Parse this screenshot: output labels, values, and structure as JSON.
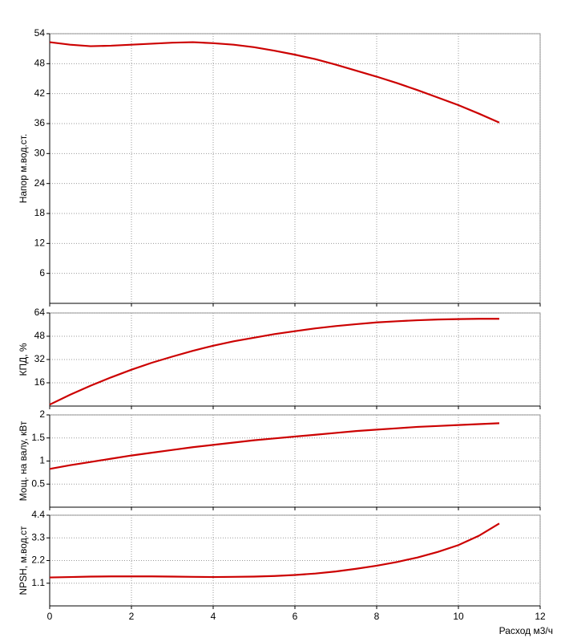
{
  "chart_data": [
    {
      "type": "line",
      "ylabel": "Напор м.вод.ст.",
      "grid": true,
      "xlim": [
        0,
        12
      ],
      "xticks": [
        0,
        2,
        4,
        6,
        8,
        10,
        12
      ],
      "ylim": [
        0,
        54
      ],
      "yticks": [
        6,
        12,
        18,
        24,
        30,
        36,
        42,
        48,
        54
      ],
      "x": [
        0,
        0.5,
        1,
        1.5,
        2,
        2.5,
        3,
        3.5,
        4,
        4.5,
        5,
        5.5,
        6,
        6.5,
        7,
        7.5,
        8,
        8.5,
        9,
        9.5,
        10,
        10.5,
        11
      ],
      "series": [
        {
          "color": "#cc0000",
          "values": [
            52.3,
            51.8,
            51.5,
            51.6,
            51.8,
            52.0,
            52.2,
            52.3,
            52.1,
            51.8,
            51.3,
            50.6,
            49.8,
            48.9,
            47.8,
            46.6,
            45.4,
            44.1,
            42.7,
            41.2,
            39.7,
            38.0,
            36.2
          ]
        }
      ]
    },
    {
      "type": "line",
      "ylabel": "КПД, %",
      "grid": true,
      "xlim": [
        0,
        12
      ],
      "xticks": [
        0,
        2,
        4,
        6,
        8,
        10,
        12
      ],
      "ylim": [
        0,
        64
      ],
      "yticks": [
        16,
        32,
        48,
        64
      ],
      "x": [
        0,
        0.5,
        1,
        1.5,
        2,
        2.5,
        3,
        3.5,
        4,
        4.5,
        5,
        5.5,
        6,
        6.5,
        7,
        7.5,
        8,
        8.5,
        9,
        9.5,
        10,
        10.5,
        11
      ],
      "series": [
        {
          "color": "#cc0000",
          "values": [
            1,
            7.8,
            14,
            19.7,
            25,
            29.8,
            34,
            38,
            41.5,
            44.5,
            47,
            49.5,
            51.5,
            53.4,
            55,
            56.3,
            57.5,
            58.3,
            59,
            59.5,
            59.8,
            60,
            60
          ]
        }
      ]
    },
    {
      "type": "line",
      "ylabel": "Мощ. на валу, кВт",
      "grid": true,
      "xlim": [
        0,
        12
      ],
      "xticks": [
        0,
        2,
        4,
        6,
        8,
        10,
        12
      ],
      "ylim": [
        0,
        2
      ],
      "yticks": [
        0.5,
        1,
        1.5,
        2
      ],
      "x": [
        0,
        0.5,
        1,
        1.5,
        2,
        2.5,
        3,
        3.5,
        4,
        4.5,
        5,
        5.5,
        6,
        6.5,
        7,
        7.5,
        8,
        8.5,
        9,
        9.5,
        10,
        10.5,
        11
      ],
      "series": [
        {
          "color": "#cc0000",
          "values": [
            0.83,
            0.91,
            0.98,
            1.05,
            1.12,
            1.18,
            1.24,
            1.3,
            1.35,
            1.4,
            1.45,
            1.49,
            1.53,
            1.57,
            1.61,
            1.65,
            1.68,
            1.71,
            1.74,
            1.76,
            1.78,
            1.8,
            1.82
          ]
        }
      ]
    },
    {
      "type": "line",
      "ylabel": "NPSH, м.вод.ст",
      "xlabel": "Расход м3/ч",
      "grid": true,
      "xlim": [
        0,
        12
      ],
      "xticks": [
        0,
        2,
        4,
        6,
        8,
        10,
        12
      ],
      "ylim": [
        0,
        4.4
      ],
      "yticks": [
        1.1,
        2.2,
        3.3,
        4.4
      ],
      "x": [
        0,
        0.5,
        1,
        1.5,
        2,
        2.5,
        3,
        3.5,
        4,
        4.5,
        5,
        5.5,
        6,
        6.5,
        7,
        7.5,
        8,
        8.5,
        9,
        9.5,
        10,
        10.5,
        11
      ],
      "series": [
        {
          "color": "#cc0000",
          "values": [
            1.38,
            1.4,
            1.42,
            1.43,
            1.43,
            1.43,
            1.42,
            1.41,
            1.4,
            1.41,
            1.42,
            1.45,
            1.5,
            1.57,
            1.67,
            1.8,
            1.95,
            2.13,
            2.35,
            2.62,
            2.95,
            3.4,
            4.0
          ]
        }
      ]
    }
  ]
}
